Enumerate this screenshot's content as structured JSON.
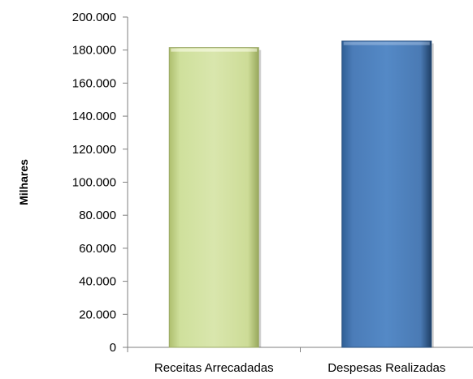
{
  "chart_data": {
    "type": "bar",
    "title": "",
    "xlabel": "",
    "ylabel": "Milhares",
    "categories": [
      "Receitas Arrecadadas",
      "Despesas Realizadas"
    ],
    "values": [
      181500,
      185500
    ],
    "ylim": [
      0,
      200000
    ],
    "yticks": [
      0,
      20000,
      40000,
      60000,
      80000,
      100000,
      120000,
      140000,
      160000,
      180000,
      200000
    ],
    "ytick_labels": [
      "0",
      "20.000",
      "40.000",
      "60.000",
      "80.000",
      "100.000",
      "120.000",
      "140.000",
      "160.000",
      "180.000",
      "200.000"
    ],
    "bar_colors": [
      "#d5e3a5",
      "#4f81bd"
    ],
    "grid": false,
    "legend": "none"
  }
}
